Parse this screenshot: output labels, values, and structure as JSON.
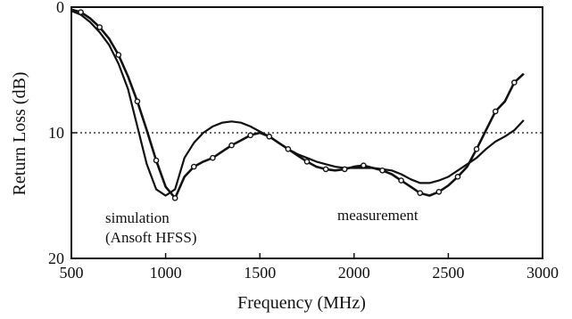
{
  "chart_data": {
    "type": "line",
    "xlabel": "Frequency (MHz)",
    "ylabel": "Return Loss (dB)",
    "xlim": [
      500,
      3000
    ],
    "ylim": [
      0,
      20
    ],
    "y_inverted": true,
    "x_ticks": [
      "500",
      "1000",
      "1500",
      "2000",
      "2500",
      "3000"
    ],
    "x_tick_values": [
      500,
      1000,
      1500,
      2000,
      2500,
      3000
    ],
    "y_ticks": [
      "0",
      "10",
      "20"
    ],
    "y_tick_values": [
      0,
      10,
      20
    ],
    "reference_line": {
      "y": 10,
      "style": "dotted"
    },
    "grid": false,
    "annotations": [
      {
        "lines": [
          "simulation",
          "(Ansoft HFSS)"
        ],
        "series": "simulation"
      },
      {
        "lines": [
          "measurement"
        ],
        "series": "measurement"
      }
    ],
    "series": [
      {
        "name": "simulation",
        "color": "#111111",
        "x": [
          500,
          550,
          600,
          650,
          700,
          750,
          800,
          850,
          900,
          950,
          1000,
          1050,
          1100,
          1150,
          1200,
          1250,
          1300,
          1350,
          1400,
          1450,
          1500,
          1550,
          1600,
          1650,
          1700,
          1750,
          1800,
          1850,
          1900,
          1950,
          2000,
          2050,
          2100,
          2150,
          2200,
          2250,
          2300,
          2350,
          2400,
          2450,
          2500,
          2550,
          2600,
          2650,
          2700,
          2750,
          2800,
          2850,
          2900
        ],
        "y": [
          0.3,
          0.6,
          1.2,
          2.0,
          3.0,
          4.5,
          6.5,
          9.5,
          12.5,
          14.5,
          15.0,
          14.5,
          12.0,
          10.8,
          10.0,
          9.5,
          9.2,
          9.1,
          9.2,
          9.5,
          9.9,
          10.3,
          10.8,
          11.3,
          11.7,
          12.0,
          12.3,
          12.5,
          12.7,
          12.8,
          12.8,
          12.8,
          12.8,
          12.9,
          13.0,
          13.3,
          13.7,
          14.0,
          14.0,
          13.8,
          13.5,
          13.0,
          12.5,
          12.0,
          11.3,
          10.7,
          10.3,
          9.8,
          9.0
        ]
      },
      {
        "name": "measurement",
        "color": "#111111",
        "x": [
          500,
          550,
          600,
          650,
          700,
          750,
          800,
          850,
          900,
          950,
          1000,
          1050,
          1100,
          1150,
          1200,
          1250,
          1300,
          1350,
          1400,
          1450,
          1500,
          1550,
          1600,
          1650,
          1700,
          1750,
          1800,
          1850,
          1900,
          1950,
          2000,
          2050,
          2100,
          2150,
          2200,
          2250,
          2300,
          2350,
          2400,
          2450,
          2500,
          2550,
          2600,
          2650,
          2700,
          2750,
          2800,
          2850,
          2900
        ],
        "y": [
          0.2,
          0.4,
          0.9,
          1.6,
          2.5,
          3.8,
          5.5,
          7.5,
          9.8,
          12.2,
          14.3,
          15.2,
          13.5,
          12.7,
          12.3,
          12.0,
          11.5,
          11.0,
          10.6,
          10.2,
          10.0,
          10.3,
          10.8,
          11.3,
          11.8,
          12.3,
          12.7,
          12.9,
          13.0,
          12.9,
          12.7,
          12.6,
          12.8,
          13.0,
          13.3,
          13.8,
          14.3,
          14.8,
          15.0,
          14.7,
          14.2,
          13.5,
          12.7,
          11.3,
          9.8,
          8.3,
          7.5,
          6.0,
          5.3
        ]
      }
    ]
  }
}
